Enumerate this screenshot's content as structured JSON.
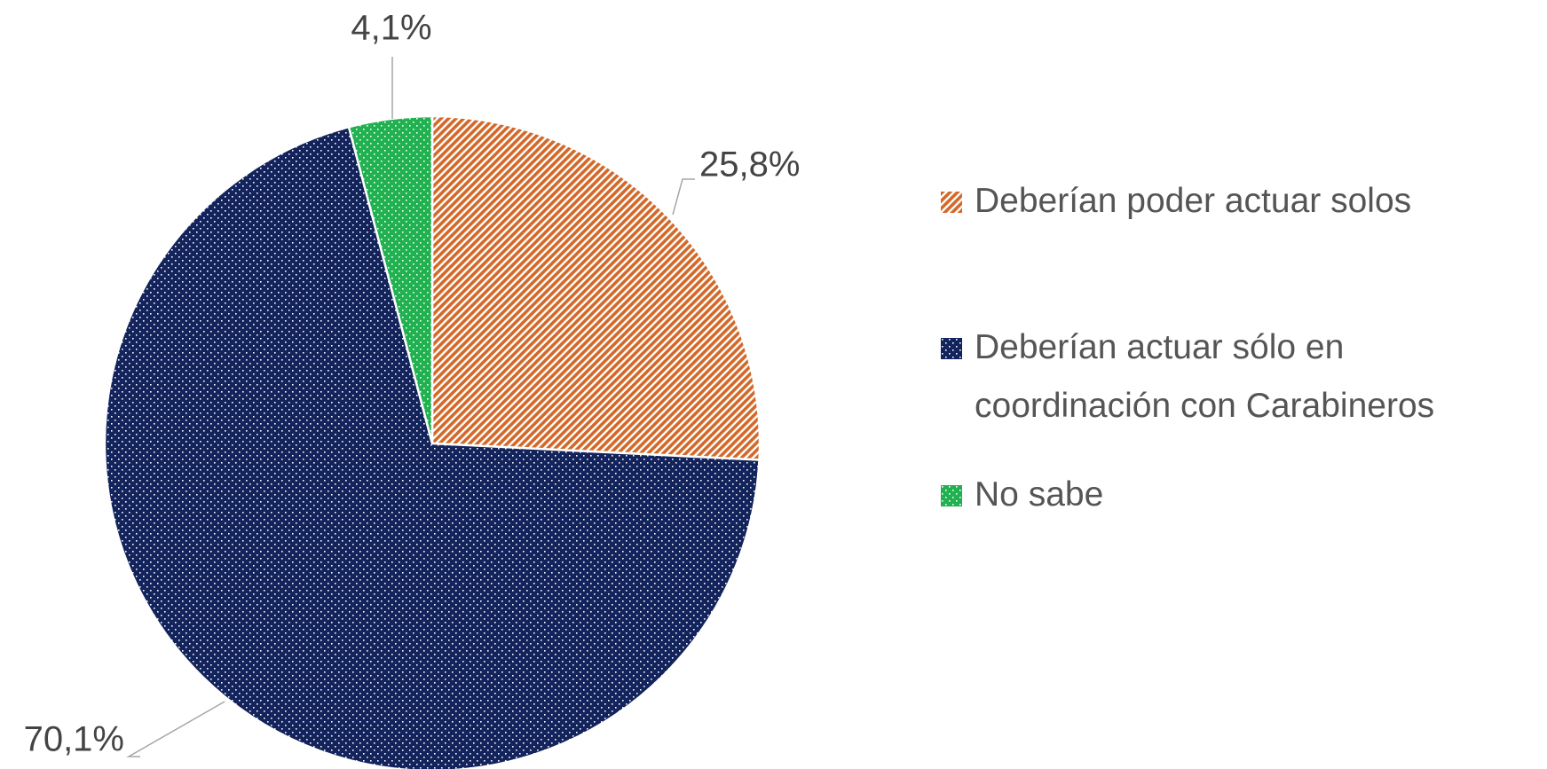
{
  "chart_data": {
    "type": "pie",
    "categories": [
      "Deberían poder actuar solos",
      "Deberían actuar sólo en coordinación con Carabineros",
      "No sabe"
    ],
    "values": [
      25.8,
      70.1,
      4.1
    ],
    "value_labels": [
      "25,8%",
      "70,1%",
      "4,1%"
    ],
    "colors": [
      "#d2692a",
      "#13235b",
      "#21b150"
    ],
    "patterns": [
      "diagonal",
      "dots",
      "dots"
    ],
    "legend": "right"
  }
}
